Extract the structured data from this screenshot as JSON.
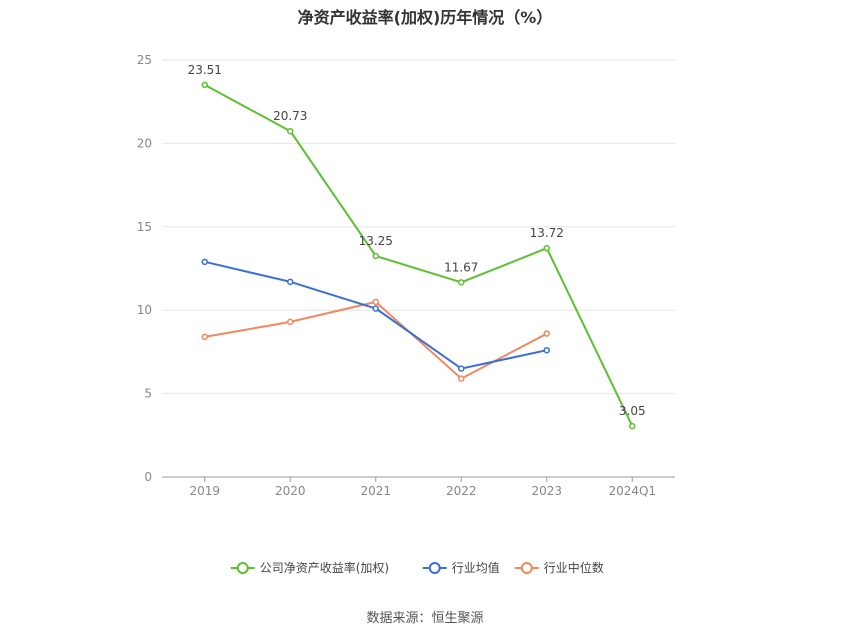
{
  "chart_data": {
    "type": "line",
    "title": "净资产收益率(加权)历年情况（%）",
    "categories": [
      "2019",
      "2020",
      "2021",
      "2022",
      "2023",
      "2024Q1"
    ],
    "ylim": [
      0,
      25
    ],
    "yticks": [
      0,
      5,
      10,
      15,
      20,
      25
    ],
    "grid": true,
    "legend_position": "bottom",
    "series": [
      {
        "name": "公司净资产收益率(加权)",
        "color": "#5cc130",
        "values": [
          23.51,
          20.73,
          13.25,
          11.67,
          13.72,
          3.05
        ],
        "labels": [
          "23.51",
          "20.73",
          "13.25",
          "11.67",
          "13.72",
          "3.05"
        ]
      },
      {
        "name": "行业均值",
        "color": "#3a6fd8",
        "values": [
          12.9,
          11.7,
          10.1,
          6.5,
          7.6,
          null
        ]
      },
      {
        "name": "行业中位数",
        "color": "#f2875e",
        "values": [
          8.4,
          9.3,
          10.5,
          5.9,
          8.6,
          null
        ]
      }
    ]
  },
  "source_text": "数据来源：恒生聚源"
}
